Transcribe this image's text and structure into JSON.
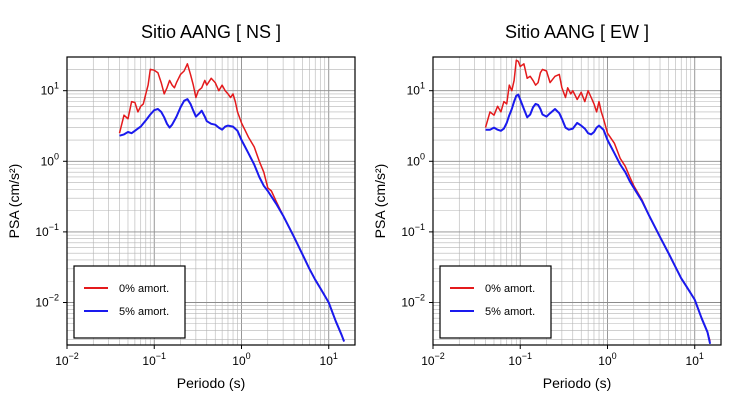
{
  "chart_data": [
    {
      "type": "line",
      "title": "Sitio AANG [ NS ]",
      "xlabel": "Periodo (s)",
      "ylabel": "PSA (cm/s²)",
      "xscale": "log",
      "yscale": "log",
      "xlim": [
        0.01,
        20
      ],
      "ylim": [
        0.0025,
        30
      ],
      "x_ticks": [
        {
          "value": 0.01,
          "base": "10",
          "exp": "−2"
        },
        {
          "value": 0.1,
          "base": "10",
          "exp": "−1"
        },
        {
          "value": 1,
          "base": "10",
          "exp": "0"
        },
        {
          "value": 10,
          "base": "10",
          "exp": "1"
        }
      ],
      "y_ticks": [
        {
          "value": 0.01,
          "base": "10",
          "exp": "−2"
        },
        {
          "value": 0.1,
          "base": "10",
          "exp": "−1"
        },
        {
          "value": 1,
          "base": "10",
          "exp": "0"
        },
        {
          "value": 10,
          "base": "10",
          "exp": "1"
        }
      ],
      "grid": true,
      "legend_position": "bottom-left",
      "series": [
        {
          "name": "0% amort.",
          "color": "#e41a1c",
          "points": [
            [
              0.04,
              2.5
            ],
            [
              0.045,
              4.5
            ],
            [
              0.05,
              4.0
            ],
            [
              0.055,
              7.0
            ],
            [
              0.06,
              6.8
            ],
            [
              0.065,
              5.0
            ],
            [
              0.07,
              6.0
            ],
            [
              0.075,
              6.5
            ],
            [
              0.08,
              9.0
            ],
            [
              0.085,
              12.0
            ],
            [
              0.09,
              20.0
            ],
            [
              0.1,
              19.5
            ],
            [
              0.11,
              18.0
            ],
            [
              0.12,
              13.0
            ],
            [
              0.13,
              9.0
            ],
            [
              0.14,
              11.0
            ],
            [
              0.15,
              14.0
            ],
            [
              0.16,
              12.0
            ],
            [
              0.17,
              11.0
            ],
            [
              0.18,
              13.0
            ],
            [
              0.2,
              17.0
            ],
            [
              0.22,
              19.0
            ],
            [
              0.24,
              24.0
            ],
            [
              0.26,
              17.0
            ],
            [
              0.28,
              12.0
            ],
            [
              0.3,
              8.0
            ],
            [
              0.32,
              10.0
            ],
            [
              0.35,
              11.0
            ],
            [
              0.38,
              14.0
            ],
            [
              0.4,
              12.0
            ],
            [
              0.45,
              15.0
            ],
            [
              0.5,
              13.0
            ],
            [
              0.55,
              10.0
            ],
            [
              0.6,
              12.0
            ],
            [
              0.65,
              10.0
            ],
            [
              0.7,
              9.0
            ],
            [
              0.75,
              8.0
            ],
            [
              0.8,
              9.0
            ],
            [
              0.85,
              7.0
            ],
            [
              0.9,
              5.0
            ],
            [
              1.0,
              3.5
            ],
            [
              1.2,
              2.2
            ],
            [
              1.4,
              1.6
            ],
            [
              1.6,
              1.0
            ],
            [
              1.8,
              0.7
            ],
            [
              2.0,
              0.42
            ],
            [
              2.2,
              0.38
            ],
            [
              2.5,
              0.27
            ],
            [
              3.0,
              0.17
            ],
            [
              4.0,
              0.085
            ],
            [
              5.0,
              0.048
            ],
            [
              6.0,
              0.03
            ],
            [
              7.0,
              0.021
            ],
            [
              8.0,
              0.016
            ],
            [
              10.0,
              0.01
            ],
            [
              12.0,
              0.0055
            ],
            [
              14.0,
              0.0035
            ],
            [
              15.0,
              0.0028
            ]
          ]
        },
        {
          "name": "5% amort.",
          "color": "#1a1aee",
          "points": [
            [
              0.04,
              2.3
            ],
            [
              0.045,
              2.4
            ],
            [
              0.05,
              2.6
            ],
            [
              0.055,
              2.5
            ],
            [
              0.06,
              2.7
            ],
            [
              0.065,
              2.9
            ],
            [
              0.07,
              3.1
            ],
            [
              0.08,
              3.8
            ],
            [
              0.09,
              4.6
            ],
            [
              0.1,
              5.3
            ],
            [
              0.11,
              5.5
            ],
            [
              0.12,
              5.0
            ],
            [
              0.13,
              4.2
            ],
            [
              0.14,
              3.4
            ],
            [
              0.15,
              3.0
            ],
            [
              0.16,
              3.3
            ],
            [
              0.18,
              4.3
            ],
            [
              0.2,
              5.8
            ],
            [
              0.22,
              7.2
            ],
            [
              0.24,
              7.6
            ],
            [
              0.26,
              6.5
            ],
            [
              0.28,
              5.2
            ],
            [
              0.3,
              4.3
            ],
            [
              0.33,
              4.8
            ],
            [
              0.35,
              5.2
            ],
            [
              0.38,
              4.3
            ],
            [
              0.4,
              3.7
            ],
            [
              0.45,
              3.4
            ],
            [
              0.5,
              3.3
            ],
            [
              0.55,
              3.0
            ],
            [
              0.6,
              2.8
            ],
            [
              0.65,
              3.1
            ],
            [
              0.7,
              3.2
            ],
            [
              0.8,
              3.1
            ],
            [
              0.9,
              2.7
            ],
            [
              1.0,
              2.0
            ],
            [
              1.2,
              1.3
            ],
            [
              1.4,
              0.9
            ],
            [
              1.6,
              0.6
            ],
            [
              1.8,
              0.45
            ],
            [
              2.0,
              0.38
            ],
            [
              2.5,
              0.25
            ],
            [
              3.0,
              0.17
            ],
            [
              4.0,
              0.085
            ],
            [
              5.0,
              0.048
            ],
            [
              6.0,
              0.03
            ],
            [
              7.0,
              0.021
            ],
            [
              8.0,
              0.016
            ],
            [
              10.0,
              0.01
            ],
            [
              12.0,
              0.0055
            ],
            [
              14.0,
              0.0035
            ],
            [
              15.0,
              0.0028
            ]
          ]
        }
      ]
    },
    {
      "type": "line",
      "title": "Sitio AANG [ EW ]",
      "xlabel": "Periodo (s)",
      "ylabel": "PSA (cm/s²)",
      "xscale": "log",
      "yscale": "log",
      "xlim": [
        0.01,
        20
      ],
      "ylim": [
        0.0025,
        30
      ],
      "x_ticks": [
        {
          "value": 0.01,
          "base": "10",
          "exp": "−2"
        },
        {
          "value": 0.1,
          "base": "10",
          "exp": "−1"
        },
        {
          "value": 1,
          "base": "10",
          "exp": "0"
        },
        {
          "value": 10,
          "base": "10",
          "exp": "1"
        }
      ],
      "y_ticks": [
        {
          "value": 0.01,
          "base": "10",
          "exp": "−2"
        },
        {
          "value": 0.1,
          "base": "10",
          "exp": "−1"
        },
        {
          "value": 1,
          "base": "10",
          "exp": "0"
        },
        {
          "value": 10,
          "base": "10",
          "exp": "1"
        }
      ],
      "grid": true,
      "legend_position": "bottom-left",
      "series": [
        {
          "name": "0% amort.",
          "color": "#e41a1c",
          "points": [
            [
              0.04,
              3.0
            ],
            [
              0.045,
              5.0
            ],
            [
              0.05,
              4.5
            ],
            [
              0.055,
              6.0
            ],
            [
              0.06,
              5.0
            ],
            [
              0.065,
              7.0
            ],
            [
              0.07,
              6.5
            ],
            [
              0.075,
              12.0
            ],
            [
              0.08,
              10.0
            ],
            [
              0.085,
              14.0
            ],
            [
              0.09,
              27.0
            ],
            [
              0.095,
              26.0
            ],
            [
              0.1,
              22.0
            ],
            [
              0.11,
              24.0
            ],
            [
              0.12,
              15.0
            ],
            [
              0.13,
              16.0
            ],
            [
              0.14,
              14.0
            ],
            [
              0.15,
              12.0
            ],
            [
              0.16,
              13.0
            ],
            [
              0.17,
              18.0
            ],
            [
              0.18,
              20.0
            ],
            [
              0.2,
              19.0
            ],
            [
              0.22,
              13.0
            ],
            [
              0.25,
              16.0
            ],
            [
              0.28,
              17.0
            ],
            [
              0.3,
              11.0
            ],
            [
              0.33,
              8.0
            ],
            [
              0.35,
              11.0
            ],
            [
              0.38,
              9.0
            ],
            [
              0.4,
              10.0
            ],
            [
              0.45,
              7.5
            ],
            [
              0.5,
              9.5
            ],
            [
              0.55,
              7.0
            ],
            [
              0.6,
              10.0
            ],
            [
              0.65,
              8.0
            ],
            [
              0.7,
              6.5
            ],
            [
              0.75,
              5.0
            ],
            [
              0.8,
              7.0
            ],
            [
              0.85,
              5.0
            ],
            [
              0.9,
              4.0
            ],
            [
              1.0,
              2.5
            ],
            [
              1.2,
              1.8
            ],
            [
              1.4,
              1.1
            ],
            [
              1.6,
              0.85
            ],
            [
              1.8,
              0.6
            ],
            [
              2.0,
              0.45
            ],
            [
              2.5,
              0.28
            ],
            [
              3.0,
              0.17
            ],
            [
              4.0,
              0.085
            ],
            [
              5.0,
              0.05
            ],
            [
              6.0,
              0.032
            ],
            [
              7.0,
              0.022
            ],
            [
              8.0,
              0.017
            ],
            [
              10.0,
              0.011
            ],
            [
              12.0,
              0.006
            ],
            [
              14.0,
              0.0038
            ],
            [
              15.0,
              0.0028
            ]
          ]
        },
        {
          "name": "5% amort.",
          "color": "#1a1aee",
          "points": [
            [
              0.04,
              2.8
            ],
            [
              0.045,
              2.8
            ],
            [
              0.05,
              3.0
            ],
            [
              0.055,
              2.8
            ],
            [
              0.06,
              2.7
            ],
            [
              0.065,
              2.9
            ],
            [
              0.07,
              3.5
            ],
            [
              0.075,
              4.5
            ],
            [
              0.08,
              5.5
            ],
            [
              0.085,
              7.0
            ],
            [
              0.09,
              8.5
            ],
            [
              0.095,
              8.8
            ],
            [
              0.1,
              7.5
            ],
            [
              0.11,
              5.5
            ],
            [
              0.12,
              4.2
            ],
            [
              0.13,
              4.6
            ],
            [
              0.14,
              5.8
            ],
            [
              0.15,
              6.5
            ],
            [
              0.16,
              6.3
            ],
            [
              0.17,
              5.5
            ],
            [
              0.18,
              4.6
            ],
            [
              0.2,
              4.3
            ],
            [
              0.22,
              4.8
            ],
            [
              0.25,
              5.5
            ],
            [
              0.28,
              4.8
            ],
            [
              0.3,
              4.0
            ],
            [
              0.33,
              3.0
            ],
            [
              0.36,
              2.8
            ],
            [
              0.4,
              2.9
            ],
            [
              0.45,
              3.5
            ],
            [
              0.5,
              3.2
            ],
            [
              0.55,
              2.9
            ],
            [
              0.6,
              2.5
            ],
            [
              0.65,
              2.4
            ],
            [
              0.7,
              2.6
            ],
            [
              0.75,
              3.0
            ],
            [
              0.8,
              3.2
            ],
            [
              0.9,
              2.8
            ],
            [
              1.0,
              2.0
            ],
            [
              1.2,
              1.3
            ],
            [
              1.4,
              0.9
            ],
            [
              1.6,
              0.7
            ],
            [
              1.8,
              0.52
            ],
            [
              2.0,
              0.42
            ],
            [
              2.5,
              0.27
            ],
            [
              3.0,
              0.17
            ],
            [
              4.0,
              0.085
            ],
            [
              5.0,
              0.05
            ],
            [
              6.0,
              0.032
            ],
            [
              7.0,
              0.022
            ],
            [
              8.0,
              0.017
            ],
            [
              10.0,
              0.011
            ],
            [
              12.0,
              0.006
            ],
            [
              14.0,
              0.0038
            ],
            [
              15.0,
              0.0026
            ]
          ]
        }
      ]
    }
  ]
}
